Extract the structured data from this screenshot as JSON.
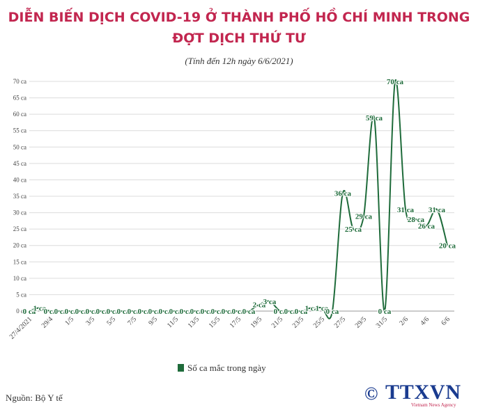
{
  "chart_data": {
    "type": "line",
    "title": "DIỄN BIẾN DỊCH COVID-19 Ở THÀNH PHỐ HỒ CHÍ MINH TRONG ĐỢT DỊCH THỨ TƯ",
    "subtitle": "(Tính đến 12h ngày 6/6/2021)",
    "categories": [
      "27/4/2021",
      null,
      "29/4",
      null,
      "1/5",
      null,
      "3/5",
      null,
      "5/5",
      null,
      "7/5",
      null,
      "9/5",
      null,
      "11/5",
      null,
      "13/5",
      null,
      "15/5",
      null,
      "17/5",
      null,
      "19/5",
      null,
      "21/5",
      null,
      "23/5",
      null,
      "25/5",
      null,
      "27/5",
      null,
      "29/5",
      null,
      "31/5",
      null,
      "2/6",
      null,
      "4/6",
      null,
      "6/6"
    ],
    "series": [
      {
        "name": "Số ca mắc trong ngày",
        "color": "#1e6b3a",
        "values": [
          0,
          1,
          0,
          0,
          0,
          0,
          0,
          0,
          0,
          0,
          0,
          0,
          0,
          0,
          0,
          0,
          0,
          0,
          0,
          0,
          0,
          0,
          2,
          3,
          0,
          0,
          0,
          1,
          1,
          0,
          36,
          25,
          29,
          59,
          0,
          70,
          31,
          28,
          26,
          31,
          20
        ],
        "value_labels": [
          "0 ca",
          "1 ca",
          "0 ca",
          "0 ca",
          "0 ca",
          "0 ca",
          "0 ca",
          "0 ca",
          "0 ca",
          "0 ca",
          "0 ca",
          "0 ca",
          "0 ca",
          "0 ca",
          "0 ca",
          "0 ca",
          "0 ca",
          "0 ca",
          "0 ca",
          "0 ca",
          "0 ca",
          "0 ca",
          "2 ca",
          "3 ca",
          "0 ca",
          "0 ca",
          "0 ca",
          "1 ca",
          "1 ca",
          "0 ca",
          "36 ca",
          "25 ca",
          "29 ca",
          "59 ca",
          "0 ca",
          "70 ca",
          "31 ca",
          "28 ca",
          "26 ca",
          "31 ca",
          "20 ca"
        ]
      }
    ],
    "ylim": [
      0,
      70
    ],
    "yticks": [
      {
        "value": 0,
        "label": "0 ca"
      },
      {
        "value": 5,
        "label": "5 ca"
      },
      {
        "value": 10,
        "label": "10 ca"
      },
      {
        "value": 15,
        "label": "15 ca"
      },
      {
        "value": 20,
        "label": "20 ca"
      },
      {
        "value": 25,
        "label": "25 ca"
      },
      {
        "value": 30,
        "label": "30 ca"
      },
      {
        "value": 35,
        "label": "35 ca"
      },
      {
        "value": 40,
        "label": "40 ca"
      },
      {
        "value": 45,
        "label": "45 ca"
      },
      {
        "value": 50,
        "label": "50 ca"
      },
      {
        "value": 55,
        "label": "55 ca"
      },
      {
        "value": 60,
        "label": "60 ca"
      },
      {
        "value": 65,
        "label": "65 ca"
      },
      {
        "value": 70,
        "label": "70 ca"
      }
    ],
    "grid": true,
    "legend": "bottom",
    "source": "Nguồn: Bộ Y tế",
    "logo": {
      "symbol": "©",
      "name": "TTXVN",
      "tagline": "Vietnam News Agency"
    }
  }
}
